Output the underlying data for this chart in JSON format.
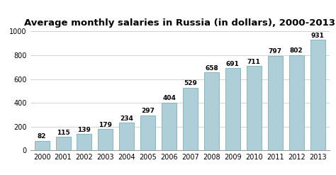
{
  "title": "Average monthly salaries in Russia (in dollars), 2000-2013",
  "years": [
    "2000",
    "2001",
    "2002",
    "2003",
    "2004",
    "2005",
    "2006",
    "2007",
    "2008",
    "2009",
    "2010",
    "2011",
    "2012",
    "2013"
  ],
  "values": [
    82,
    115,
    139,
    179,
    234,
    297,
    404,
    529,
    658,
    691,
    711,
    797,
    802,
    931
  ],
  "bar_color": "#aecfd8",
  "bar_edge_color": "#7aaebb",
  "background_color": "#ffffff",
  "ylim": [
    0,
    1000
  ],
  "yticks": [
    0,
    200,
    400,
    600,
    800,
    1000
  ],
  "title_fontsize": 9.5,
  "label_fontsize": 6.5,
  "tick_fontsize": 7,
  "grid_color": "#cccccc"
}
